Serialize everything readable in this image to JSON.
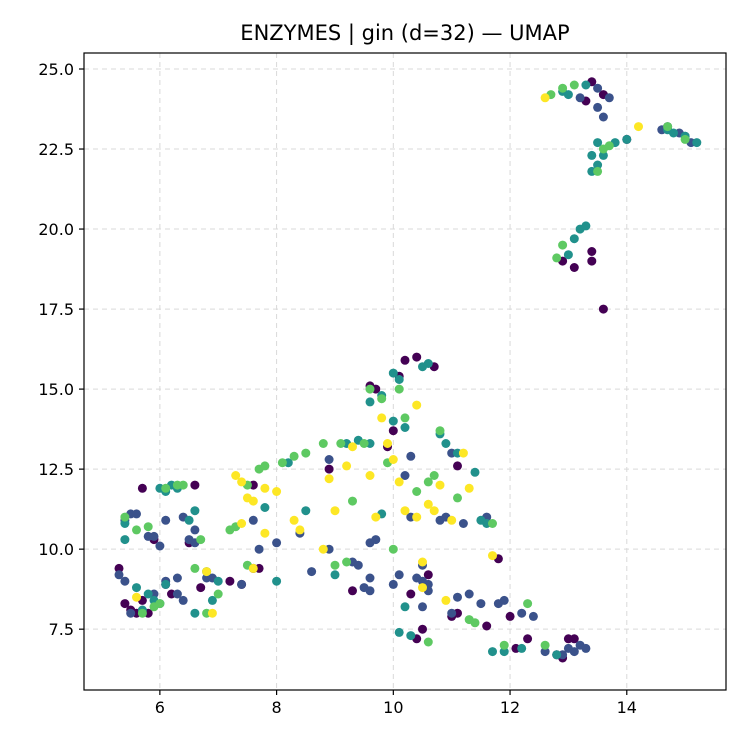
{
  "colors": {
    "class_0": "#440154",
    "class_1": "#3b528b",
    "class_2": "#21918c",
    "class_3": "#5ec962",
    "class_4": "#fde725",
    "grid": "#d9d9d9",
    "axis": "#000000"
  },
  "chart_data": {
    "type": "scatter",
    "title": "ENZYMES | gin (d=32) — UMAP",
    "xlabel": "",
    "ylabel": "",
    "xlim": [
      4.7,
      15.7
    ],
    "ylim": [
      5.6,
      25.5
    ],
    "xticks": [
      6,
      8,
      10,
      12,
      14
    ],
    "yticks": [
      7.5,
      10.0,
      12.5,
      15.0,
      17.5,
      20.0,
      22.5,
      25.0
    ],
    "xtick_labels": [
      "6",
      "8",
      "10",
      "12",
      "14"
    ],
    "ytick_labels": [
      "7.5",
      "10.0",
      "12.5",
      "15.0",
      "17.5",
      "20.0",
      "22.5",
      "25.0"
    ],
    "grid": true,
    "legend": "none",
    "series": [
      {
        "color": "#440154",
        "points": [
          [
            5.3,
            9.4
          ],
          [
            5.4,
            8.3
          ],
          [
            5.5,
            8.1
          ],
          [
            5.6,
            8.0
          ],
          [
            5.7,
            8.4
          ],
          [
            5.8,
            8.0
          ],
          [
            5.7,
            11.9
          ],
          [
            5.9,
            10.3
          ],
          [
            6.1,
            8.9
          ],
          [
            6.2,
            8.6
          ],
          [
            6.5,
            10.2
          ],
          [
            6.6,
            12.0
          ],
          [
            6.7,
            8.8
          ],
          [
            7.2,
            9.0
          ],
          [
            7.4,
            8.9
          ],
          [
            7.6,
            9.4
          ],
          [
            7.6,
            12.0
          ],
          [
            7.7,
            9.4
          ],
          [
            8.9,
            12.5
          ],
          [
            9.3,
            8.7
          ],
          [
            9.6,
            15.1
          ],
          [
            9.7,
            15.0
          ],
          [
            9.9,
            13.2
          ],
          [
            10.0,
            13.7
          ],
          [
            10.1,
            15.4
          ],
          [
            10.2,
            15.9
          ],
          [
            10.4,
            16.0
          ],
          [
            10.3,
            8.6
          ],
          [
            10.4,
            7.2
          ],
          [
            10.5,
            7.5
          ],
          [
            10.6,
            9.2
          ],
          [
            10.7,
            15.7
          ],
          [
            11.0,
            7.9
          ],
          [
            11.1,
            8.0
          ],
          [
            11.1,
            12.6
          ],
          [
            11.6,
            7.6
          ],
          [
            11.8,
            9.7
          ],
          [
            12.0,
            7.9
          ],
          [
            12.1,
            6.9
          ],
          [
            12.3,
            7.2
          ],
          [
            12.8,
            6.7
          ],
          [
            12.9,
            6.6
          ],
          [
            13.0,
            7.2
          ],
          [
            13.1,
            7.2
          ],
          [
            12.9,
            19.0
          ],
          [
            13.1,
            18.8
          ],
          [
            13.4,
            19.0
          ],
          [
            13.4,
            19.3
          ],
          [
            13.3,
            24.0
          ],
          [
            13.4,
            24.6
          ],
          [
            13.6,
            24.2
          ],
          [
            13.6,
            17.5
          ],
          [
            14.0,
            22.8
          ]
        ]
      },
      {
        "color": "#3b528b",
        "points": [
          [
            5.3,
            9.2
          ],
          [
            5.4,
            9.0
          ],
          [
            5.4,
            10.9
          ],
          [
            5.5,
            11.1
          ],
          [
            5.5,
            8.0
          ],
          [
            5.6,
            11.1
          ],
          [
            5.8,
            10.4
          ],
          [
            5.9,
            10.4
          ],
          [
            5.9,
            8.6
          ],
          [
            6.0,
            10.1
          ],
          [
            6.1,
            9.0
          ],
          [
            6.1,
            10.9
          ],
          [
            6.3,
            8.6
          ],
          [
            6.3,
            9.1
          ],
          [
            6.4,
            8.4
          ],
          [
            6.4,
            11.0
          ],
          [
            6.5,
            10.3
          ],
          [
            6.6,
            10.2
          ],
          [
            6.6,
            10.6
          ],
          [
            6.8,
            9.1
          ],
          [
            6.9,
            9.1
          ],
          [
            7.4,
            8.9
          ],
          [
            7.6,
            10.9
          ],
          [
            7.7,
            10.0
          ],
          [
            8.0,
            10.2
          ],
          [
            8.4,
            10.5
          ],
          [
            8.6,
            9.3
          ],
          [
            8.9,
            10.0
          ],
          [
            8.9,
            12.8
          ],
          [
            9.3,
            9.6
          ],
          [
            9.4,
            9.5
          ],
          [
            9.5,
            8.8
          ],
          [
            9.6,
            9.1
          ],
          [
            9.6,
            10.2
          ],
          [
            9.6,
            8.7
          ],
          [
            9.7,
            10.3
          ],
          [
            10.0,
            8.9
          ],
          [
            10.1,
            9.2
          ],
          [
            10.2,
            12.3
          ],
          [
            10.3,
            11.0
          ],
          [
            10.3,
            12.9
          ],
          [
            10.4,
            9.1
          ],
          [
            10.5,
            9.5
          ],
          [
            10.5,
            8.2
          ],
          [
            10.5,
            9.0
          ],
          [
            10.6,
            8.9
          ],
          [
            10.6,
            8.7
          ],
          [
            10.8,
            10.9
          ],
          [
            10.9,
            11.0
          ],
          [
            11.0,
            8.0
          ],
          [
            11.0,
            13.0
          ],
          [
            11.1,
            8.5
          ],
          [
            11.2,
            10.8
          ],
          [
            11.3,
            8.6
          ],
          [
            11.5,
            8.3
          ],
          [
            11.6,
            11.0
          ],
          [
            11.8,
            8.3
          ],
          [
            11.9,
            8.4
          ],
          [
            12.2,
            8.0
          ],
          [
            12.4,
            7.9
          ],
          [
            12.6,
            6.8
          ],
          [
            12.9,
            6.7
          ],
          [
            13.0,
            6.9
          ],
          [
            13.1,
            6.8
          ],
          [
            13.2,
            7.0
          ],
          [
            13.3,
            6.9
          ],
          [
            13.2,
            24.1
          ],
          [
            13.5,
            23.8
          ],
          [
            13.5,
            24.4
          ],
          [
            13.6,
            23.5
          ],
          [
            13.7,
            24.1
          ],
          [
            14.6,
            23.1
          ],
          [
            14.7,
            23.2
          ],
          [
            14.9,
            23.0
          ],
          [
            15.0,
            22.9
          ],
          [
            15.1,
            22.7
          ]
        ]
      },
      {
        "color": "#21918c",
        "points": [
          [
            5.4,
            10.8
          ],
          [
            5.4,
            10.3
          ],
          [
            5.6,
            8.8
          ],
          [
            5.7,
            8.1
          ],
          [
            5.8,
            8.6
          ],
          [
            5.9,
            8.4
          ],
          [
            6.0,
            8.3
          ],
          [
            6.1,
            8.9
          ],
          [
            6.0,
            11.9
          ],
          [
            6.1,
            11.8
          ],
          [
            6.2,
            12.0
          ],
          [
            6.3,
            11.9
          ],
          [
            6.5,
            10.9
          ],
          [
            6.6,
            11.2
          ],
          [
            6.6,
            8.0
          ],
          [
            6.8,
            9.3
          ],
          [
            6.9,
            8.4
          ],
          [
            7.0,
            9.0
          ],
          [
            7.8,
            11.3
          ],
          [
            8.0,
            9.0
          ],
          [
            8.2,
            12.7
          ],
          [
            8.5,
            11.2
          ],
          [
            9.0,
            9.2
          ],
          [
            9.2,
            13.3
          ],
          [
            9.4,
            13.4
          ],
          [
            9.6,
            13.3
          ],
          [
            9.6,
            14.6
          ],
          [
            9.8,
            14.8
          ],
          [
            9.8,
            11.1
          ],
          [
            10.0,
            14.0
          ],
          [
            10.0,
            15.5
          ],
          [
            10.1,
            15.3
          ],
          [
            10.2,
            13.8
          ],
          [
            10.1,
            7.4
          ],
          [
            10.2,
            8.2
          ],
          [
            10.3,
            7.3
          ],
          [
            10.5,
            15.7
          ],
          [
            10.6,
            15.8
          ],
          [
            10.8,
            13.6
          ],
          [
            10.9,
            13.3
          ],
          [
            11.1,
            13.0
          ],
          [
            11.4,
            12.4
          ],
          [
            11.5,
            10.9
          ],
          [
            11.6,
            10.8
          ],
          [
            11.7,
            6.8
          ],
          [
            11.9,
            6.8
          ],
          [
            12.2,
            6.9
          ],
          [
            12.8,
            6.7
          ],
          [
            13.0,
            19.2
          ],
          [
            13.1,
            19.7
          ],
          [
            13.2,
            20.0
          ],
          [
            13.3,
            20.1
          ],
          [
            13.4,
            22.3
          ],
          [
            13.4,
            21.8
          ],
          [
            13.5,
            22.0
          ],
          [
            13.5,
            22.7
          ],
          [
            13.6,
            22.3
          ],
          [
            13.8,
            22.7
          ],
          [
            14.0,
            22.8
          ],
          [
            14.7,
            23.1
          ],
          [
            14.8,
            23.0
          ],
          [
            15.0,
            22.9
          ],
          [
            15.2,
            22.7
          ],
          [
            12.9,
            24.3
          ],
          [
            13.0,
            24.2
          ],
          [
            13.3,
            24.5
          ]
        ]
      },
      {
        "color": "#5ec962",
        "points": [
          [
            5.4,
            11.0
          ],
          [
            5.6,
            10.6
          ],
          [
            5.7,
            8.0
          ],
          [
            5.8,
            10.7
          ],
          [
            5.9,
            8.2
          ],
          [
            6.0,
            8.3
          ],
          [
            6.1,
            11.9
          ],
          [
            6.3,
            12.0
          ],
          [
            6.4,
            12.0
          ],
          [
            6.6,
            9.4
          ],
          [
            6.7,
            10.3
          ],
          [
            6.8,
            8.0
          ],
          [
            7.0,
            8.6
          ],
          [
            7.2,
            10.6
          ],
          [
            7.3,
            10.7
          ],
          [
            7.5,
            9.5
          ],
          [
            7.5,
            12.0
          ],
          [
            7.7,
            12.5
          ],
          [
            7.8,
            12.6
          ],
          [
            8.1,
            12.7
          ],
          [
            8.3,
            12.9
          ],
          [
            8.5,
            13.0
          ],
          [
            8.8,
            13.3
          ],
          [
            9.0,
            9.5
          ],
          [
            9.1,
            13.3
          ],
          [
            9.2,
            9.6
          ],
          [
            9.3,
            11.5
          ],
          [
            9.5,
            13.3
          ],
          [
            9.6,
            15.0
          ],
          [
            9.8,
            14.7
          ],
          [
            9.9,
            12.7
          ],
          [
            10.0,
            10.0
          ],
          [
            10.1,
            15.0
          ],
          [
            10.2,
            14.1
          ],
          [
            10.4,
            11.8
          ],
          [
            10.6,
            12.1
          ],
          [
            10.6,
            7.1
          ],
          [
            10.7,
            12.3
          ],
          [
            10.8,
            13.7
          ],
          [
            11.1,
            11.6
          ],
          [
            11.3,
            7.8
          ],
          [
            11.4,
            7.7
          ],
          [
            11.7,
            10.8
          ],
          [
            11.9,
            7.0
          ],
          [
            12.3,
            8.3
          ],
          [
            12.6,
            7.0
          ],
          [
            12.8,
            19.1
          ],
          [
            12.9,
            19.5
          ],
          [
            12.7,
            24.2
          ],
          [
            12.9,
            24.4
          ],
          [
            13.1,
            24.5
          ],
          [
            13.5,
            21.8
          ],
          [
            13.6,
            22.5
          ],
          [
            13.7,
            22.6
          ],
          [
            14.7,
            23.2
          ],
          [
            15.0,
            22.8
          ]
        ]
      },
      {
        "color": "#fde725",
        "points": [
          [
            5.6,
            8.5
          ],
          [
            6.8,
            9.3
          ],
          [
            6.9,
            8.0
          ],
          [
            7.3,
            12.3
          ],
          [
            7.4,
            12.1
          ],
          [
            7.4,
            10.8
          ],
          [
            7.5,
            11.6
          ],
          [
            7.6,
            11.5
          ],
          [
            7.6,
            9.4
          ],
          [
            7.8,
            10.5
          ],
          [
            7.8,
            11.9
          ],
          [
            8.0,
            11.8
          ],
          [
            8.3,
            10.9
          ],
          [
            8.4,
            10.6
          ],
          [
            8.8,
            10.0
          ],
          [
            8.9,
            12.2
          ],
          [
            9.0,
            11.2
          ],
          [
            9.2,
            12.6
          ],
          [
            9.3,
            13.2
          ],
          [
            9.6,
            12.3
          ],
          [
            9.7,
            11.0
          ],
          [
            9.8,
            14.1
          ],
          [
            9.9,
            13.3
          ],
          [
            10.0,
            12.8
          ],
          [
            10.1,
            12.1
          ],
          [
            10.2,
            11.2
          ],
          [
            10.4,
            11.0
          ],
          [
            10.4,
            14.5
          ],
          [
            10.5,
            8.8
          ],
          [
            10.5,
            9.6
          ],
          [
            10.6,
            11.4
          ],
          [
            10.7,
            11.2
          ],
          [
            10.8,
            12.0
          ],
          [
            10.9,
            8.4
          ],
          [
            11.0,
            10.9
          ],
          [
            11.2,
            13.0
          ],
          [
            11.3,
            11.9
          ],
          [
            11.7,
            9.8
          ],
          [
            12.6,
            24.1
          ],
          [
            14.2,
            23.2
          ]
        ]
      }
    ]
  }
}
